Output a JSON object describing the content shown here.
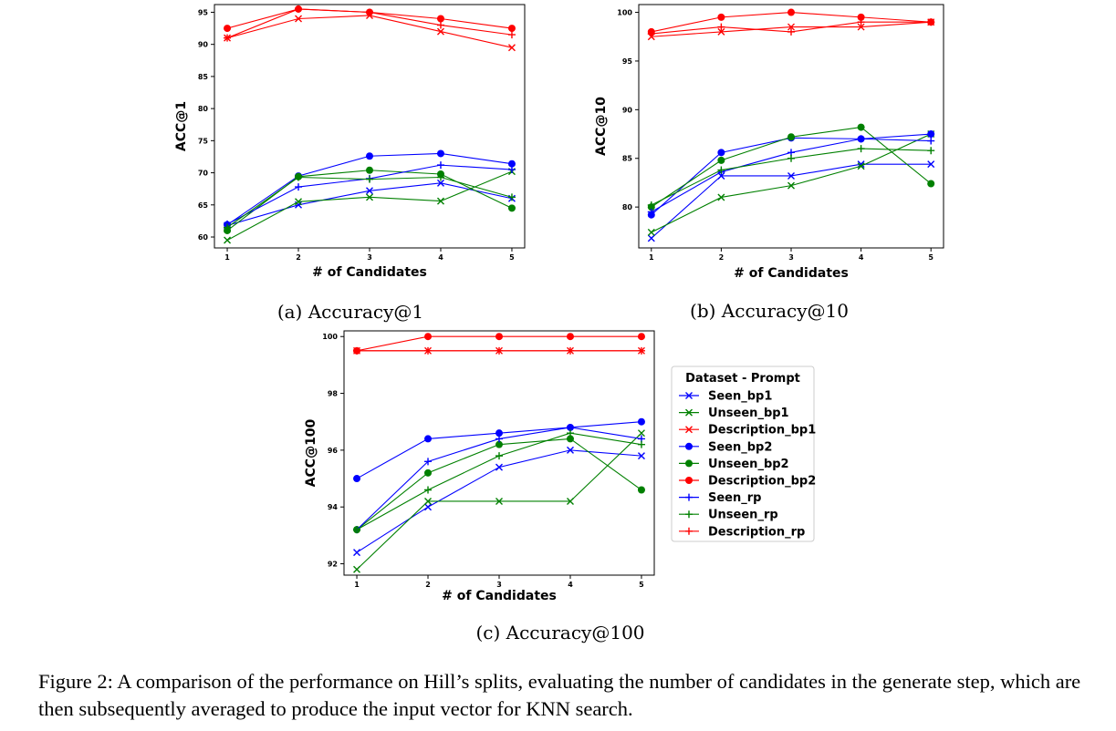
{
  "series_styles": {
    "Seen_bp1": {
      "color": "#0000ff",
      "marker": "x"
    },
    "Unseen_bp1": {
      "color": "#008000",
      "marker": "x"
    },
    "Description_bp1": {
      "color": "#ff0000",
      "marker": "x"
    },
    "Seen_bp2": {
      "color": "#0000ff",
      "marker": "o"
    },
    "Unseen_bp2": {
      "color": "#008000",
      "marker": "o"
    },
    "Description_bp2": {
      "color": "#ff0000",
      "marker": "o"
    },
    "Seen_rp": {
      "color": "#0000ff",
      "marker": "+"
    },
    "Unseen_rp": {
      "color": "#008000",
      "marker": "+"
    },
    "Description_rp": {
      "color": "#ff0000",
      "marker": "+"
    }
  },
  "legend": {
    "title": "Dataset - Prompt",
    "entries": [
      "Seen_bp1",
      "Unseen_bp1",
      "Description_bp1",
      "Seen_bp2",
      "Unseen_bp2",
      "Description_bp2",
      "Seen_rp",
      "Unseen_rp",
      "Description_rp"
    ]
  },
  "figure_caption": "Figure 2: A comparison of the performance on Hill’s splits, evaluating the number of candidates in the generate step, which are then subsequently averaged to produce the input vector for KNN search.",
  "chart_data": [
    {
      "type": "line",
      "caption": "(a) Accuracy@1",
      "xlabel": "# of Candidates",
      "ylabel": "ACC@1",
      "x": [
        1,
        2,
        3,
        4,
        5
      ],
      "xticks": [
        "1",
        "2",
        "3",
        "4",
        "5"
      ],
      "yticks": [
        60,
        65,
        70,
        75,
        80,
        85,
        90,
        95
      ],
      "ylim": [
        58.3,
        96.2
      ],
      "series": [
        {
          "name": "Seen_bp1",
          "values": [
            61.8,
            65.0,
            67.2,
            68.4,
            66.0
          ]
        },
        {
          "name": "Unseen_bp1",
          "values": [
            59.5,
            65.5,
            66.2,
            65.6,
            70.2
          ]
        },
        {
          "name": "Description_bp1",
          "values": [
            91.0,
            94.0,
            94.5,
            92.0,
            89.5
          ]
        },
        {
          "name": "Seen_bp2",
          "values": [
            61.9,
            69.5,
            72.6,
            73.0,
            71.4
          ]
        },
        {
          "name": "Unseen_bp2",
          "values": [
            61.0,
            69.4,
            70.4,
            69.8,
            64.5
          ]
        },
        {
          "name": "Description_bp2",
          "values": [
            92.5,
            95.5,
            95.0,
            94.0,
            92.5
          ]
        },
        {
          "name": "Seen_rp",
          "values": [
            62.0,
            67.8,
            69.1,
            71.2,
            70.5
          ]
        },
        {
          "name": "Unseen_rp",
          "values": [
            61.5,
            69.3,
            69.0,
            69.3,
            66.2
          ]
        },
        {
          "name": "Description_rp",
          "values": [
            91.0,
            95.5,
            95.0,
            93.0,
            91.5
          ]
        }
      ]
    },
    {
      "type": "line",
      "caption": "(b) Accuracy@10",
      "xlabel": "# of Candidates",
      "ylabel": "ACC@10",
      "x": [
        1,
        2,
        3,
        4,
        5
      ],
      "xticks": [
        "1",
        "2",
        "3",
        "4",
        "5"
      ],
      "yticks": [
        80,
        85,
        90,
        95,
        100
      ],
      "ylim": [
        75.8,
        100.8
      ],
      "series": [
        {
          "name": "Seen_bp1",
          "values": [
            76.8,
            83.2,
            83.2,
            84.4,
            84.4
          ]
        },
        {
          "name": "Unseen_bp1",
          "values": [
            77.4,
            81.0,
            82.2,
            84.2,
            87.5
          ]
        },
        {
          "name": "Description_bp1",
          "values": [
            97.5,
            98.0,
            98.5,
            98.5,
            99.0
          ]
        },
        {
          "name": "Seen_bp2",
          "values": [
            79.2,
            85.6,
            87.1,
            87.0,
            87.5
          ]
        },
        {
          "name": "Unseen_bp2",
          "values": [
            80.0,
            84.8,
            87.2,
            88.2,
            82.4
          ]
        },
        {
          "name": "Description_bp2",
          "values": [
            98.0,
            99.5,
            100.0,
            99.5,
            99.0
          ]
        },
        {
          "name": "Seen_rp",
          "values": [
            79.5,
            83.6,
            85.6,
            87.0,
            86.8
          ]
        },
        {
          "name": "Unseen_rp",
          "values": [
            80.2,
            83.8,
            85.0,
            86.0,
            85.8
          ]
        },
        {
          "name": "Description_rp",
          "values": [
            97.8,
            98.5,
            98.0,
            99.0,
            99.0
          ]
        }
      ]
    },
    {
      "type": "line",
      "caption": "(c) Accuracy@100",
      "xlabel": "# of Candidates",
      "ylabel": "ACC@100",
      "x": [
        1,
        2,
        3,
        4,
        5
      ],
      "xticks": [
        "1",
        "2",
        "3",
        "4",
        "5"
      ],
      "yticks": [
        92,
        94,
        96,
        98,
        100
      ],
      "ylim": [
        91.6,
        100.2
      ],
      "series": [
        {
          "name": "Seen_bp1",
          "values": [
            92.4,
            94.0,
            95.4,
            96.0,
            95.8
          ]
        },
        {
          "name": "Unseen_bp1",
          "values": [
            91.8,
            94.2,
            94.2,
            94.2,
            96.6
          ]
        },
        {
          "name": "Description_bp1",
          "values": [
            99.5,
            99.5,
            99.5,
            99.5,
            99.5
          ]
        },
        {
          "name": "Seen_bp2",
          "values": [
            95.0,
            96.4,
            96.6,
            96.8,
            97.0
          ]
        },
        {
          "name": "Unseen_bp2",
          "values": [
            93.2,
            95.2,
            96.2,
            96.4,
            94.6
          ]
        },
        {
          "name": "Description_bp2",
          "values": [
            99.5,
            100.0,
            100.0,
            100.0,
            100.0
          ]
        },
        {
          "name": "Seen_rp",
          "values": [
            93.2,
            95.6,
            96.4,
            96.8,
            96.4
          ]
        },
        {
          "name": "Unseen_rp",
          "values": [
            93.2,
            94.6,
            95.8,
            96.6,
            96.2
          ]
        },
        {
          "name": "Description_rp",
          "values": [
            99.5,
            99.5,
            99.5,
            99.5,
            99.5
          ]
        }
      ]
    }
  ]
}
